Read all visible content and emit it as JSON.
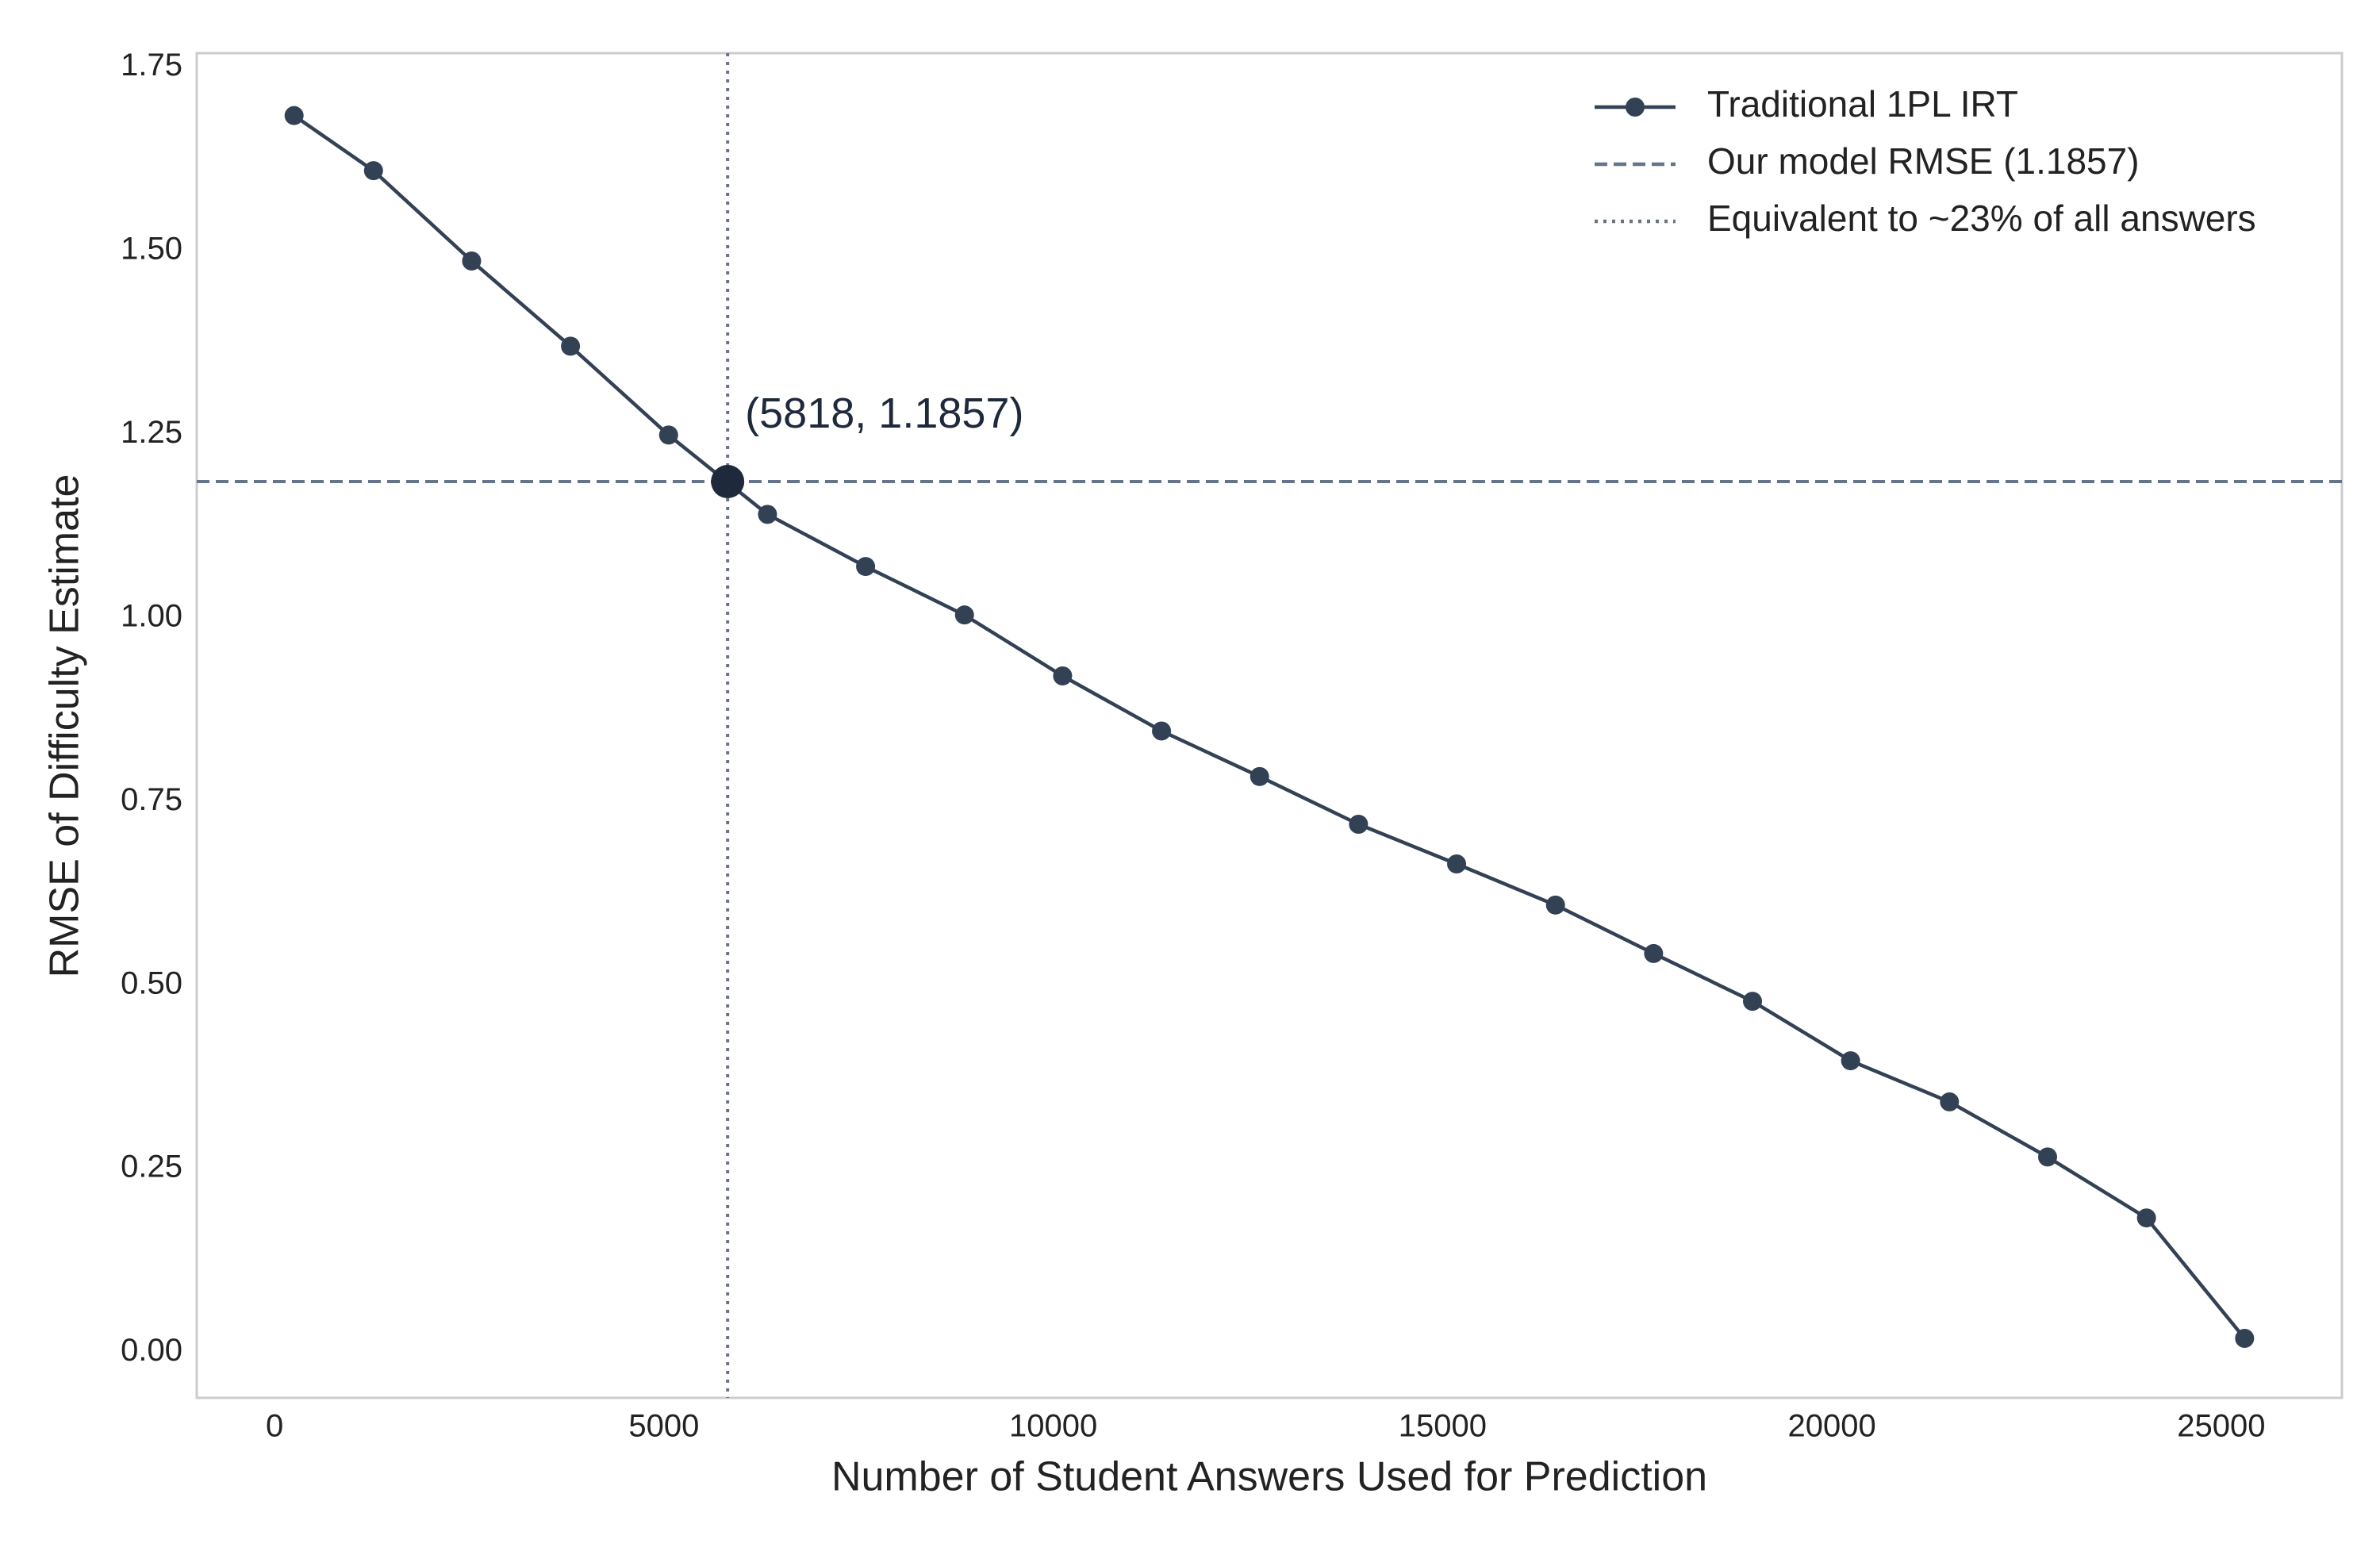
{
  "chart_data": {
    "type": "line",
    "xlabel": "Number of Student Answers Used for Prediction",
    "ylabel": "RMSE of Difficulty Estimate",
    "xlim": [
      -1000,
      26550
    ],
    "ylim": [
      -0.062,
      1.769
    ],
    "xticks": [
      0,
      5000,
      10000,
      15000,
      20000,
      25000
    ],
    "yticks": [
      {
        "value": 0,
        "label": "0.00"
      },
      {
        "value": 0.25,
        "label": "0.25"
      },
      {
        "value": 0.5,
        "label": "0.50"
      },
      {
        "value": 0.75,
        "label": "0.75"
      },
      {
        "value": 1,
        "label": "1.00"
      },
      {
        "value": 1.25,
        "label": "1.25"
      },
      {
        "value": 1.5,
        "label": "1.50"
      },
      {
        "value": 1.75,
        "label": "1.75"
      }
    ],
    "grid": false,
    "legend": "upper right",
    "series": [
      {
        "name": "Traditional 1PL IRT",
        "color": "#334155",
        "x": [
          250,
          1270,
          2530,
          3800,
          5060,
          6330,
          7590,
          8860,
          10120,
          11390,
          12650,
          13920,
          15180,
          16450,
          17710,
          18980,
          20240,
          21510,
          22770,
          24040,
          25300
        ],
        "y": [
          1.684,
          1.609,
          1.486,
          1.37,
          1.249,
          1.141,
          1.07,
          1.004,
          0.921,
          0.846,
          0.784,
          0.719,
          0.665,
          0.609,
          0.543,
          0.478,
          0.397,
          0.341,
          0.266,
          0.183,
          0.019
        ]
      }
    ],
    "hline": {
      "name": "Our model RMSE (1.1857)",
      "value": 1.1857,
      "color": "#64748b"
    },
    "vline": {
      "name": "Equivalent to ~23% of all answers",
      "value": 5818,
      "color": "#6b7280"
    },
    "annotation": {
      "text": "(5818, 1.1857)",
      "x": 5818,
      "y": 1.1857,
      "color": "#1e293b"
    }
  }
}
